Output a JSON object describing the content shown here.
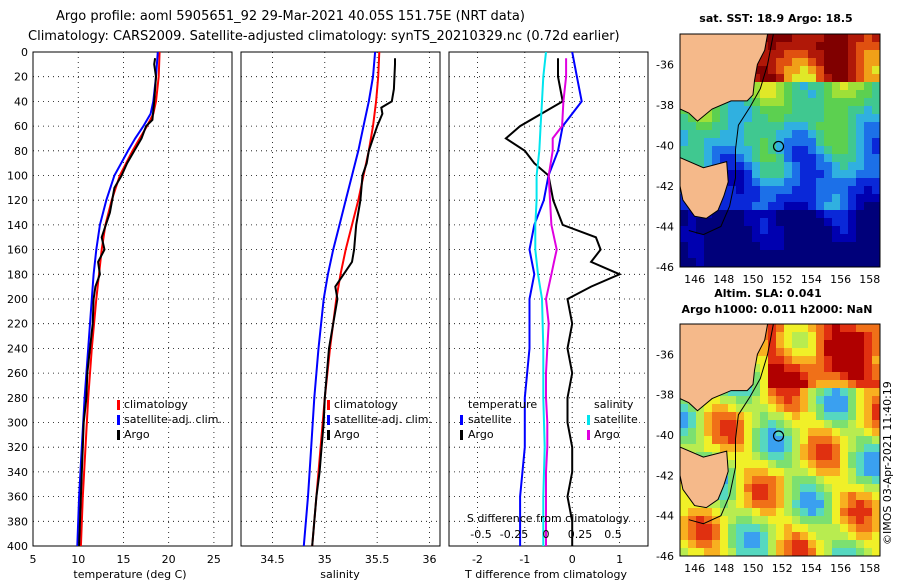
{
  "header": {
    "line1": "Argo profile: aoml 5905651_92 29-Mar-2021 40.05S 151.75E (NRT data)",
    "line2": "Climatology: CARS2009. Satellite-adjusted climatology: synTS_20210329.nc (0.72d earlier)"
  },
  "colors": {
    "climatology": "#ff0000",
    "satellite": "#0000ff",
    "argo": "#000000",
    "sat_t_diff": "#0000ff",
    "sat_s_diff": "#00e5ee",
    "argo_s_diff": "#e000e0",
    "land": "#f5b98a",
    "deep_blue": "#00007a"
  },
  "chart_data": [
    {
      "name": "temperature",
      "type": "line",
      "xlabel": "temperature (deg C)",
      "ylabel": "",
      "xlim": [
        5,
        27
      ],
      "ylim": [
        400,
        0
      ],
      "xticks": [
        5,
        10,
        15,
        20,
        25
      ],
      "yticks": [
        0,
        20,
        40,
        60,
        80,
        100,
        120,
        140,
        160,
        180,
        200,
        220,
        240,
        260,
        280,
        300,
        320,
        340,
        360,
        380,
        400
      ],
      "legend": [
        "climatology",
        "satellite-adj. clim.",
        "Argo"
      ],
      "series": [
        {
          "name": "climatology",
          "color": "#ff0000",
          "depth": [
            0,
            20,
            40,
            50,
            60,
            70,
            80,
            100,
            120,
            140,
            160,
            180,
            200,
            240,
            280,
            320,
            360,
            400
          ],
          "values": [
            19.0,
            18.9,
            18.6,
            18.3,
            17.6,
            16.8,
            16.0,
            14.6,
            13.7,
            13.0,
            12.6,
            12.3,
            12.0,
            11.5,
            11.1,
            10.8,
            10.5,
            10.3
          ]
        },
        {
          "name": "satellite-adj. clim.",
          "color": "#0000ff",
          "depth": [
            0,
            20,
            40,
            50,
            60,
            70,
            80,
            100,
            120,
            140,
            160,
            180,
            200,
            240,
            280,
            320,
            360,
            400
          ],
          "values": [
            18.8,
            18.6,
            18.3,
            18.0,
            17.2,
            16.3,
            15.5,
            14.0,
            13.1,
            12.4,
            12.0,
            11.7,
            11.5,
            11.1,
            10.7,
            10.4,
            10.1,
            9.9
          ]
        },
        {
          "name": "Argo",
          "color": "#000000",
          "depth": [
            5,
            10,
            20,
            40,
            55,
            60,
            70,
            80,
            90,
            100,
            110,
            130,
            150,
            160,
            170,
            180,
            190,
            200,
            220,
            240,
            260,
            280,
            300,
            320,
            340,
            360,
            380,
            400
          ],
          "values": [
            18.5,
            18.4,
            18.6,
            18.4,
            18.2,
            17.5,
            17.0,
            16.2,
            15.4,
            14.8,
            14.0,
            13.5,
            12.6,
            12.9,
            12.2,
            12.4,
            11.9,
            11.7,
            11.6,
            11.3,
            11.0,
            10.9,
            10.6,
            10.5,
            10.4,
            10.3,
            10.2,
            10.1
          ]
        }
      ]
    },
    {
      "name": "salinity",
      "type": "line",
      "xlabel": "salinity",
      "ylabel": "",
      "xlim": [
        34.2,
        36.1
      ],
      "ylim": [
        400,
        0
      ],
      "xticks": [
        34.5,
        35,
        35.5,
        36
      ],
      "xtick_labels": [
        "34.5",
        "35",
        "35.5",
        "36"
      ],
      "legend": [
        "climatology",
        "satellite-adj. clim.",
        "Argo"
      ],
      "series": [
        {
          "name": "climatology",
          "color": "#ff0000",
          "depth": [
            0,
            20,
            40,
            60,
            80,
            100,
            120,
            140,
            160,
            180,
            200,
            240,
            280,
            320,
            360,
            400
          ],
          "values": [
            35.52,
            35.51,
            35.49,
            35.46,
            35.42,
            35.37,
            35.32,
            35.26,
            35.2,
            35.15,
            35.11,
            35.05,
            35.0,
            34.96,
            34.92,
            34.88
          ]
        },
        {
          "name": "satellite-adj. clim.",
          "color": "#0000ff",
          "depth": [
            0,
            20,
            40,
            60,
            80,
            100,
            120,
            140,
            160,
            180,
            200,
            240,
            280,
            320,
            360,
            400
          ],
          "values": [
            35.48,
            35.46,
            35.42,
            35.37,
            35.32,
            35.26,
            35.2,
            35.14,
            35.08,
            35.03,
            34.99,
            34.94,
            34.9,
            34.87,
            34.84,
            34.8
          ]
        },
        {
          "name": "Argo",
          "color": "#000000",
          "depth": [
            5,
            10,
            30,
            40,
            45,
            50,
            60,
            80,
            90,
            100,
            120,
            140,
            160,
            170,
            180,
            190,
            200,
            220,
            240,
            260,
            280,
            300,
            320,
            340,
            360,
            380,
            400
          ],
          "values": [
            35.67,
            35.67,
            35.66,
            35.64,
            35.54,
            35.55,
            35.5,
            35.42,
            35.4,
            35.36,
            35.34,
            35.3,
            35.28,
            35.26,
            35.18,
            35.1,
            35.12,
            35.08,
            35.04,
            35.02,
            35.0,
            34.99,
            34.97,
            34.95,
            34.92,
            34.9,
            34.88
          ]
        }
      ]
    },
    {
      "name": "differences",
      "type": "line",
      "xlabel": "T difference from climatology",
      "xlim": [
        -2.6,
        1.6
      ],
      "ylim": [
        400,
        0
      ],
      "xticks": [
        -2,
        -1,
        0,
        1
      ],
      "xtick_labels": [
        "-2",
        "-1",
        "0",
        "1"
      ],
      "s_xticks_labels": [
        "-0.5",
        "-0.25",
        "0",
        "0.25",
        "0.5"
      ],
      "s_axis_label": "S difference from climatology",
      "legend_left_title": "temperature",
      "legend_right_title": "salinity",
      "legend_left": [
        "satellite",
        "Argo"
      ],
      "legend_right": [
        "satellite",
        "Argo"
      ],
      "series": [
        {
          "name": "satellite T diff",
          "color": "#0000ff",
          "depth": [
            0,
            20,
            40,
            60,
            80,
            100,
            120,
            140,
            160,
            180,
            200,
            240,
            280,
            320,
            360,
            400
          ],
          "values": [
            0.0,
            0.1,
            0.2,
            -0.2,
            -0.3,
            -0.5,
            -0.6,
            -0.8,
            -0.9,
            -0.8,
            -0.9,
            -0.9,
            -1.0,
            -1.0,
            -1.1,
            -1.1
          ]
        },
        {
          "name": "Argo T diff",
          "color": "#000000",
          "depth": [
            5,
            20,
            40,
            60,
            70,
            80,
            90,
            100,
            120,
            140,
            150,
            160,
            170,
            180,
            190,
            200,
            220,
            240,
            260,
            280,
            300,
            320,
            340,
            360,
            380,
            400
          ],
          "values": [
            -0.3,
            -0.3,
            -0.2,
            -1.1,
            -1.4,
            -1.0,
            -0.8,
            -0.5,
            -0.4,
            -0.2,
            0.5,
            0.6,
            0.4,
            1.0,
            0.4,
            -0.1,
            0.0,
            -0.1,
            0.0,
            -0.1,
            -0.1,
            0.0,
            0.0,
            -0.1,
            0.0,
            0.0
          ]
        },
        {
          "name": "satellite S diff",
          "color": "#00e5ee",
          "depth": [
            0,
            20,
            40,
            60,
            80,
            100,
            120,
            140,
            160,
            180,
            200,
            240,
            280,
            320,
            360,
            400
          ],
          "values": [
            0.0,
            -0.02,
            -0.03,
            -0.04,
            -0.05,
            -0.07,
            -0.07,
            -0.08,
            -0.08,
            -0.06,
            -0.03,
            -0.02,
            -0.02,
            -0.01,
            -0.02,
            -0.02
          ]
        },
        {
          "name": "Argo S diff",
          "color": "#e000e0",
          "depth": [
            5,
            20,
            40,
            60,
            70,
            80,
            100,
            120,
            140,
            160,
            170,
            180,
            200,
            220,
            240,
            260,
            280,
            300,
            320,
            340,
            360,
            380,
            400
          ],
          "values": [
            0.15,
            0.15,
            0.13,
            0.12,
            0.05,
            0.05,
            0.02,
            0.03,
            0.04,
            0.08,
            0.06,
            0.04,
            0.0,
            0.02,
            0.01,
            0.0,
            0.0,
            0.01,
            0.01,
            0.0,
            0.0,
            0.0,
            0.0
          ]
        }
      ]
    },
    {
      "name": "sst-map",
      "type": "heatmap",
      "title": "sat. SST: 18.9 Argo: 18.5",
      "xticks": [
        146,
        148,
        150,
        152,
        154,
        156,
        158
      ],
      "yticks": [
        -36,
        -38,
        -40,
        -42,
        -44,
        -46
      ],
      "xtick_labels": [
        "146",
        "148",
        "150",
        "152",
        "154",
        "156",
        "158"
      ],
      "ytick_labels": [
        "-36",
        "-38",
        "-40",
        "-42",
        "-44",
        "-46"
      ],
      "xlim": [
        145,
        158.7
      ],
      "ylim": [
        -46,
        -34.5
      ],
      "marker": {
        "lon": 151.75,
        "lat": -40.05
      }
    },
    {
      "name": "sla-map",
      "type": "heatmap",
      "title_line1": "Altim. SLA: 0.041",
      "title_line2": "Argo h1000: 0.011 h2000: NaN",
      "xticks": [
        146,
        148,
        150,
        152,
        154,
        156,
        158
      ],
      "yticks": [
        -36,
        -38,
        -40,
        -42,
        -44,
        -46
      ],
      "xtick_labels": [
        "146",
        "148",
        "150",
        "152",
        "154",
        "156",
        "158"
      ],
      "ytick_labels": [
        "-36",
        "-38",
        "-40",
        "-42",
        "-44",
        "-46"
      ],
      "xlim": [
        145,
        158.7
      ],
      "ylim": [
        -46,
        -34.5
      ],
      "marker": {
        "lon": 151.75,
        "lat": -40.05
      }
    }
  ],
  "credit": "©IMOS 03-Apr-2021 11:40:19"
}
